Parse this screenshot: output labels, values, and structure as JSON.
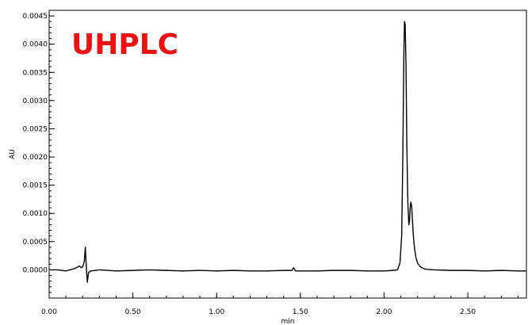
{
  "chart_data": {
    "type": "line",
    "title": "",
    "annotation": "UHPLC",
    "annotation_color": "#ee1111",
    "line_color": "#000000",
    "xlabel": "min",
    "ylabel": "AU",
    "xlim": [
      0.0,
      2.85
    ],
    "ylim": [
      -0.0005,
      0.0046
    ],
    "grid": false,
    "x_ticks": [
      0.0,
      0.5,
      1.0,
      1.5,
      2.0,
      2.5
    ],
    "x_tick_labels": [
      "0.00",
      "0.50",
      "1.00",
      "1.50",
      "2.00",
      "2.50"
    ],
    "y_ticks": [
      0.0,
      0.0005,
      0.001,
      0.0015,
      0.002,
      0.0025,
      0.003,
      0.0035,
      0.004,
      0.0045
    ],
    "y_tick_labels": [
      "0.0000",
      "0.0005",
      "0.0010",
      "0.0015",
      "0.0020",
      "0.0025",
      "0.0030",
      "0.0035",
      "0.0040",
      "0.0045"
    ],
    "series": [
      {
        "x": [
          0.0,
          0.05,
          0.1,
          0.15,
          0.17,
          0.18,
          0.19,
          0.2,
          0.21,
          0.216,
          0.222,
          0.228,
          0.235,
          0.25,
          0.3,
          0.4,
          0.5,
          0.6,
          0.7,
          0.8,
          0.9,
          1.0,
          1.1,
          1.2,
          1.3,
          1.4,
          1.45,
          1.46,
          1.47,
          1.5,
          1.6,
          1.7,
          1.8,
          1.9,
          2.0,
          2.05,
          2.08,
          2.095,
          2.105,
          2.112,
          2.118,
          2.122,
          2.126,
          2.131,
          2.136,
          2.142,
          2.148,
          2.152,
          2.156,
          2.16,
          2.165,
          2.17,
          2.175,
          2.182,
          2.19,
          2.2,
          2.215,
          2.23,
          2.25,
          2.3,
          2.4,
          2.5,
          2.6,
          2.7,
          2.8,
          2.85
        ],
        "y": [
          0.0,
          0.0,
          -2e-05,
          2e-05,
          5e-05,
          7e-05,
          4e-05,
          5e-05,
          0.00015,
          0.0004,
          5e-05,
          -0.00022,
          -5e-05,
          -2e-05,
          0.0,
          -2e-05,
          -1e-05,
          0.0,
          -1e-05,
          -2e-05,
          -1e-05,
          -2e-05,
          -1e-05,
          -2e-05,
          -2e-05,
          -1e-05,
          -1e-05,
          4e-05,
          -2e-05,
          -2e-05,
          -2e-05,
          -1e-05,
          -1e-05,
          -2e-05,
          -2e-05,
          -1e-05,
          0.0,
          0.00012,
          0.0006,
          0.002,
          0.0038,
          0.0044,
          0.00435,
          0.0036,
          0.0022,
          0.0012,
          0.0008,
          0.00088,
          0.0011,
          0.0012,
          0.00112,
          0.00085,
          0.0006,
          0.00038,
          0.00022,
          0.00012,
          6e-05,
          3e-05,
          1e-05,
          0.0,
          -1e-05,
          -1e-05,
          -2e-05,
          -1e-05,
          -2e-05,
          -2e-05
        ]
      }
    ]
  }
}
